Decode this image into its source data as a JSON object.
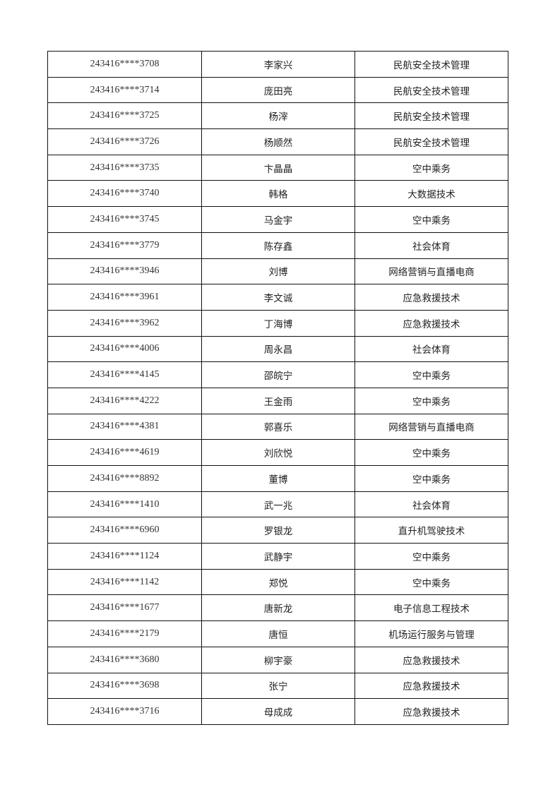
{
  "rows": [
    {
      "id": "243416****3708",
      "name": "李家兴",
      "major": "民航安全技术管理"
    },
    {
      "id": "243416****3714",
      "name": "庞田亮",
      "major": "民航安全技术管理"
    },
    {
      "id": "243416****3725",
      "name": "杨滓",
      "major": "民航安全技术管理"
    },
    {
      "id": "243416****3726",
      "name": "杨顺然",
      "major": "民航安全技术管理"
    },
    {
      "id": "243416****3735",
      "name": "卞晶晶",
      "major": "空中乘务"
    },
    {
      "id": "243416****3740",
      "name": "韩格",
      "major": "大数据技术"
    },
    {
      "id": "243416****3745",
      "name": "马金宇",
      "major": "空中乘务"
    },
    {
      "id": "243416****3779",
      "name": "陈存鑫",
      "major": "社会体育"
    },
    {
      "id": "243416****3946",
      "name": "刘博",
      "major": "网络营销与直播电商"
    },
    {
      "id": "243416****3961",
      "name": "李文诚",
      "major": "应急救援技术"
    },
    {
      "id": "243416****3962",
      "name": "丁海博",
      "major": "应急救援技术"
    },
    {
      "id": "243416****4006",
      "name": "周永昌",
      "major": "社会体育"
    },
    {
      "id": "243416****4145",
      "name": "邵皖宁",
      "major": "空中乘务"
    },
    {
      "id": "243416****4222",
      "name": "王金雨",
      "major": "空中乘务"
    },
    {
      "id": "243416****4381",
      "name": "郭喜乐",
      "major": "网络营销与直播电商"
    },
    {
      "id": "243416****4619",
      "name": "刘欣悦",
      "major": "空中乘务"
    },
    {
      "id": "243416****8892",
      "name": "董博",
      "major": "空中乘务"
    },
    {
      "id": "243416****1410",
      "name": "武一兆",
      "major": "社会体育"
    },
    {
      "id": "243416****6960",
      "name": "罗银龙",
      "major": "直升机驾驶技术"
    },
    {
      "id": "243416****1124",
      "name": "武静宇",
      "major": "空中乘务"
    },
    {
      "id": "243416****1142",
      "name": "郑悦",
      "major": "空中乘务"
    },
    {
      "id": "243416****1677",
      "name": "唐新龙",
      "major": "电子信息工程技术"
    },
    {
      "id": "243416****2179",
      "name": "唐恒",
      "major": "机场运行服务与管理"
    },
    {
      "id": "243416****3680",
      "name": "柳宇豪",
      "major": "应急救援技术"
    },
    {
      "id": "243416****3698",
      "name": "张宁",
      "major": "应急救援技术"
    },
    {
      "id": "243416****3716",
      "name": "母成成",
      "major": "应急救援技术"
    }
  ]
}
